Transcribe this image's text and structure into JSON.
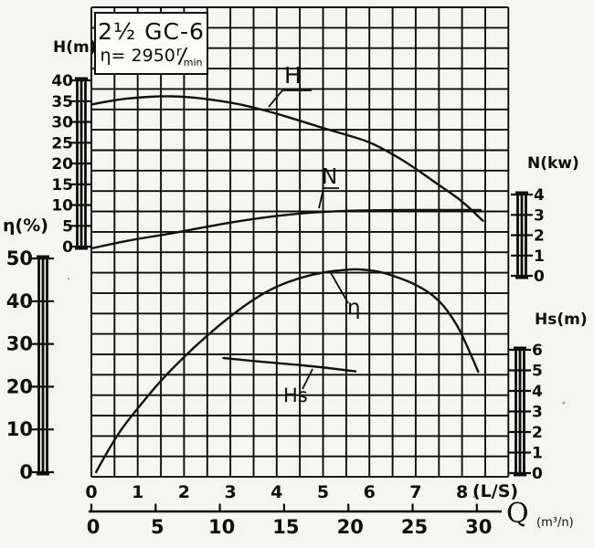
{
  "title_box": {
    "model": "2½ GC-6",
    "speed_text": "η= 2950",
    "unit_top": "r",
    "unit_bottom": "min"
  },
  "chart_data": {
    "type": "line",
    "title": "2½ GC-6 pump performance curves, η=2950 r/min",
    "x_axis": {
      "label_primary": "(L/S)",
      "ticks_primary": [
        0,
        1,
        2,
        3,
        4,
        5,
        6,
        7,
        8
      ],
      "q_symbol": "Q",
      "q_unit": "(m³/n)",
      "ticks_secondary": [
        0,
        5,
        10,
        15,
        20,
        25,
        30
      ],
      "range_ls": [
        0,
        9
      ]
    },
    "y_axes": {
      "H": {
        "label": "H(m)",
        "ticks": [
          40,
          35,
          30,
          25,
          20,
          15,
          10,
          5,
          0
        ],
        "range": [
          0,
          40
        ]
      },
      "eta": {
        "label": "η(%)",
        "ticks": [
          50,
          40,
          30,
          20,
          10,
          0
        ],
        "range": [
          0,
          50
        ]
      },
      "N": {
        "label": "N(kw)",
        "ticks": [
          4,
          3,
          2,
          1,
          0
        ],
        "range": [
          0,
          4
        ]
      },
      "Hs": {
        "label": "Hs(m)",
        "ticks": [
          6,
          5,
          4,
          3,
          2,
          1,
          0
        ],
        "range": [
          0,
          6
        ]
      }
    },
    "grid": true,
    "series": [
      {
        "name": "H",
        "axis": "H",
        "points": [
          [
            0,
            34.2
          ],
          [
            0.5,
            35.3
          ],
          [
            1,
            35.9
          ],
          [
            1.5,
            36.2
          ],
          [
            2,
            36.1
          ],
          [
            2.5,
            35.5
          ],
          [
            3,
            34.7
          ],
          [
            3.5,
            33.5
          ],
          [
            4,
            32.0
          ],
          [
            4.5,
            30.3
          ],
          [
            5,
            28.5
          ],
          [
            5.5,
            26.9
          ],
          [
            6,
            25.2
          ],
          [
            6.5,
            22.3
          ],
          [
            7,
            18.8
          ],
          [
            7.5,
            14.8
          ],
          [
            8,
            11.0
          ],
          [
            8.45,
            6.2
          ]
        ]
      },
      {
        "name": "N",
        "axis": "N",
        "points": [
          [
            0,
            1.35
          ],
          [
            0.5,
            1.6
          ],
          [
            1,
            1.82
          ],
          [
            1.5,
            2.0
          ],
          [
            2,
            2.2
          ],
          [
            2.5,
            2.42
          ],
          [
            3,
            2.62
          ],
          [
            3.5,
            2.8
          ],
          [
            4,
            2.95
          ],
          [
            4.5,
            3.07
          ],
          [
            5,
            3.15
          ],
          [
            5.5,
            3.2
          ],
          [
            6,
            3.22
          ],
          [
            6.5,
            3.24
          ],
          [
            7,
            3.24
          ],
          [
            7.5,
            3.24
          ],
          [
            8,
            3.24
          ],
          [
            8.4,
            3.24
          ]
        ]
      },
      {
        "name": "η",
        "axis": "eta",
        "points": [
          [
            0.1,
            0
          ],
          [
            0.5,
            8
          ],
          [
            1,
            15
          ],
          [
            1.5,
            21.5
          ],
          [
            2,
            27
          ],
          [
            2.5,
            32
          ],
          [
            3,
            36.5
          ],
          [
            3.5,
            40.5
          ],
          [
            4,
            43.5
          ],
          [
            4.5,
            45.5
          ],
          [
            5,
            46.8
          ],
          [
            5.5,
            47.4
          ],
          [
            5.8,
            47.5
          ],
          [
            6.2,
            47.0
          ],
          [
            6.5,
            46.0
          ],
          [
            7,
            44.0
          ],
          [
            7.5,
            40.5
          ],
          [
            7.9,
            34.5
          ],
          [
            8.15,
            28.5
          ],
          [
            8.35,
            23.5
          ]
        ]
      },
      {
        "name": "Hs",
        "axis": "Hs",
        "points": [
          [
            2.85,
            5.6
          ],
          [
            3.5,
            5.45
          ],
          [
            4.3,
            5.3
          ],
          [
            5,
            5.15
          ],
          [
            5.7,
            4.95
          ]
        ]
      }
    ]
  }
}
